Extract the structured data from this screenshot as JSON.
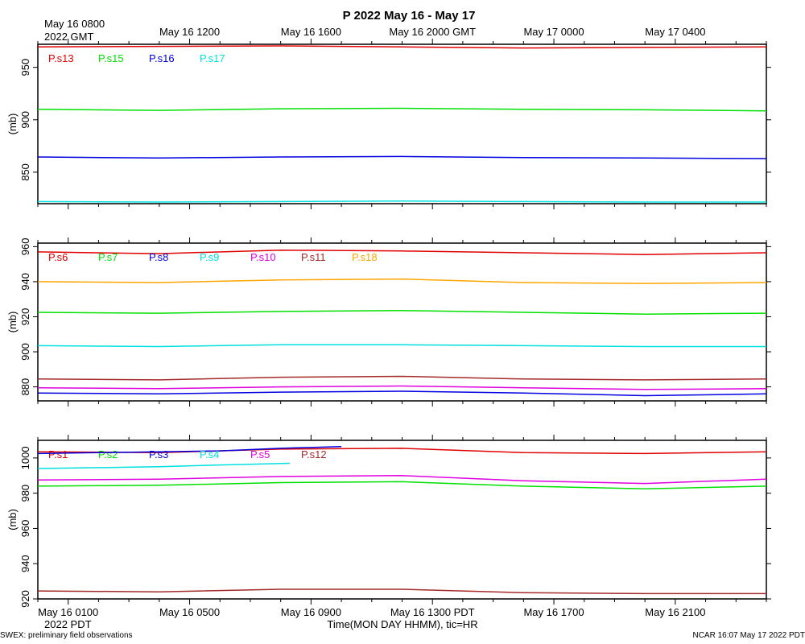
{
  "title": "P 2022 May 16 - May 17",
  "top_axis": {
    "first_label_line1": "May 16 0800",
    "first_label_line2": "2022 GMT",
    "labels": [
      "May 16 1200",
      "May 16 1600",
      "May 16 2000 GMT",
      "May 17 0000",
      "May 17 0400"
    ]
  },
  "bottom_axis": {
    "labels": [
      "May 16 0100",
      "May 16 0500",
      "May 16 0900",
      "May 16 1300 PDT",
      "May 16 1700",
      "May 16 2100"
    ],
    "year_label": "2022 PDT",
    "axis_title": "Time(MON DAY HHMM), tic=HR"
  },
  "footer_left": "SWEX: preliminary field observations",
  "footer_right": "NCAR 16:07 May 17 2022 PDT",
  "y_unit": "(mb)",
  "chart_data": [
    {
      "type": "line",
      "x_unit": "hours since May 16 0000 PDT",
      "xlim": [
        0,
        24
      ],
      "ylim": [
        820,
        972
      ],
      "yticks": [
        850,
        900,
        950
      ],
      "ylabel": "(mb)",
      "series": [
        {
          "name": "P.s13",
          "color": "#e00000",
          "x": [
            0,
            4,
            8,
            12,
            16,
            20,
            24
          ],
          "values": [
            969.5,
            970,
            970.5,
            969.5,
            968.5,
            969,
            969.5
          ]
        },
        {
          "name": "P.s15",
          "color": "#00e000",
          "x": [
            0,
            4,
            8,
            12,
            16,
            20,
            24
          ],
          "values": [
            910,
            909,
            910.5,
            911,
            910,
            909.5,
            908.5
          ]
        },
        {
          "name": "P.s16",
          "color": "#0000e0",
          "x": [
            0,
            4,
            8,
            12,
            16,
            20,
            24
          ],
          "values": [
            864.5,
            863.5,
            864.5,
            865,
            864,
            863.5,
            863
          ]
        },
        {
          "name": "P.s17",
          "color": "#00e0e0",
          "x": [
            0,
            4,
            8,
            12,
            16,
            20,
            24
          ],
          "values": [
            822,
            821.5,
            822,
            822.5,
            822,
            821.5,
            821.5
          ]
        }
      ]
    },
    {
      "type": "line",
      "x_unit": "hours since May 16 0000 PDT",
      "xlim": [
        0,
        24
      ],
      "ylim": [
        872,
        962
      ],
      "yticks": [
        880,
        900,
        920,
        940,
        960
      ],
      "ylabel": "(mb)",
      "series": [
        {
          "name": "P.s6",
          "color": "#e00000",
          "x": [
            0,
            4,
            8,
            12,
            16,
            20,
            24
          ],
          "values": [
            957,
            956,
            958,
            957.5,
            956.5,
            955.5,
            956.5
          ]
        },
        {
          "name": "P.s7",
          "color": "#00e000",
          "x": [
            0,
            4,
            8,
            12,
            16,
            20,
            24
          ],
          "values": [
            922.5,
            922,
            923,
            923.5,
            922.5,
            921.5,
            922
          ]
        },
        {
          "name": "P.s8",
          "color": "#0000e0",
          "x": [
            0,
            4,
            8,
            12,
            16,
            20,
            24
          ],
          "values": [
            876.5,
            876,
            877,
            877.5,
            876.5,
            875,
            876
          ]
        },
        {
          "name": "P.s9",
          "color": "#00e0e0",
          "x": [
            0,
            4,
            8,
            12,
            16,
            20,
            24
          ],
          "values": [
            903.5,
            903,
            904,
            904,
            903.5,
            903,
            903
          ]
        },
        {
          "name": "P.s10",
          "color": "#e000e0",
          "x": [
            0,
            4,
            8,
            12,
            16,
            20,
            24
          ],
          "values": [
            879.5,
            879,
            880,
            880.5,
            879.5,
            878.5,
            879
          ]
        },
        {
          "name": "P.s11",
          "color": "#a52a2a",
          "x": [
            0,
            4,
            8,
            12,
            16,
            20,
            24
          ],
          "values": [
            884.5,
            884,
            885.5,
            886,
            884.5,
            884,
            884.5
          ]
        },
        {
          "name": "P.s18",
          "color": "#ffa500",
          "x": [
            0,
            4,
            8,
            12,
            16,
            20,
            24
          ],
          "values": [
            940,
            939.5,
            941,
            941.5,
            939.5,
            939,
            939.5
          ]
        }
      ]
    },
    {
      "type": "line",
      "x_unit": "hours since May 16 0000 PDT",
      "xlim": [
        0,
        24
      ],
      "ylim": [
        920,
        1010
      ],
      "yticks": [
        920,
        940,
        960,
        980,
        1000
      ],
      "ylabel": "(mb)",
      "series": [
        {
          "name": "P.s1",
          "color": "#e00000",
          "x": [
            0,
            4,
            8,
            12,
            16,
            20,
            24
          ],
          "values": [
            1003.5,
            1003,
            1005,
            1005.5,
            1003,
            1002.5,
            1003.5
          ]
        },
        {
          "name": "P.s2",
          "color": "#00e000",
          "x": [
            0,
            4,
            8,
            12,
            16,
            20,
            24
          ],
          "values": [
            984,
            984.5,
            986,
            986.5,
            984,
            982.5,
            984
          ]
        },
        {
          "name": "P.s3",
          "color": "#0000e0",
          "x": [
            0,
            2,
            4,
            6,
            8,
            10
          ],
          "values": [
            1002.5,
            1003,
            1003.5,
            1004,
            1005.5,
            1006.5
          ]
        },
        {
          "name": "P.s4",
          "color": "#00e0e0",
          "x": [
            0,
            2,
            4,
            6,
            8.3
          ],
          "values": [
            994,
            994.5,
            995,
            996,
            997
          ]
        },
        {
          "name": "P.s5",
          "color": "#e000e0",
          "x": [
            0,
            4,
            8,
            12,
            16,
            20,
            24
          ],
          "values": [
            987.5,
            988,
            989.5,
            990,
            987,
            985.5,
            988
          ]
        },
        {
          "name": "P.s12",
          "color": "#a52a2a",
          "x": [
            0,
            4,
            8,
            12,
            16,
            20,
            24
          ],
          "values": [
            924.5,
            924,
            925.5,
            925.5,
            923.5,
            923,
            923
          ]
        }
      ]
    }
  ]
}
